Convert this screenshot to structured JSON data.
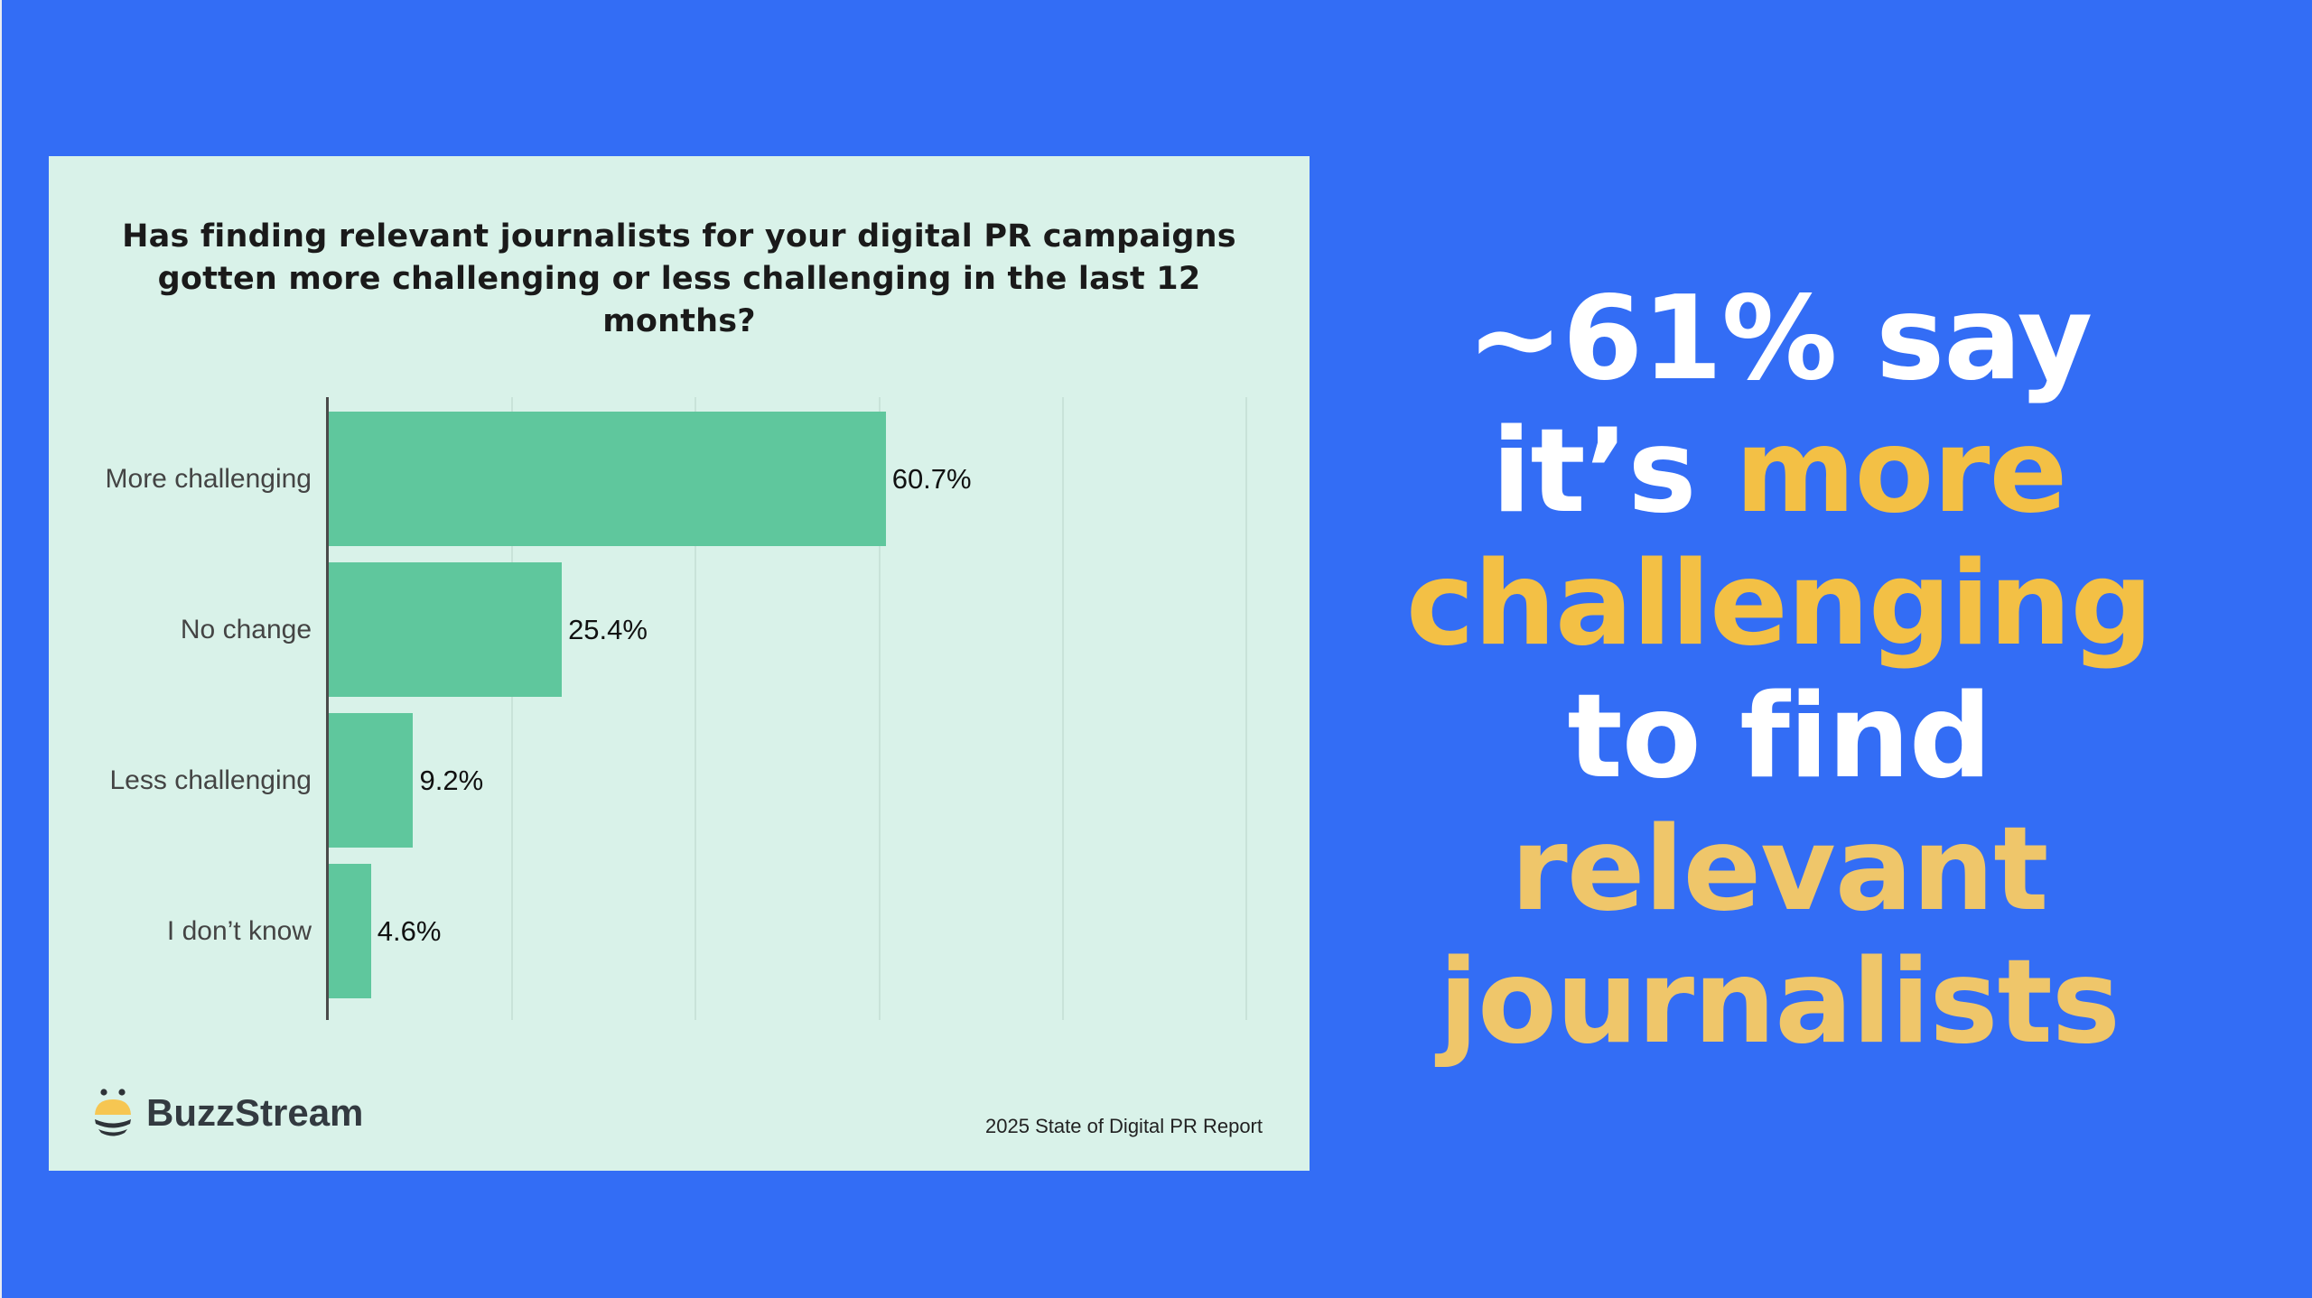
{
  "background_color": "#336DF5",
  "card": {
    "background_color": "#D9F2E9",
    "title_lines": [
      "Has finding relevant journalists for your digital PR campaigns",
      "gotten more challenging or less challenging in the last 12",
      "months?"
    ],
    "brand": "BuzzStream",
    "source": "2025 State of Digital PR Report"
  },
  "chart_data": {
    "type": "bar",
    "orientation": "horizontal",
    "title": "Has finding relevant journalists for your digital PR campaigns gotten more challenging or less challenging in the last 12 months?",
    "categories": [
      "More challenging",
      "No change",
      "Less challenging",
      "I don’t know"
    ],
    "values": [
      60.7,
      25.4,
      9.2,
      4.6
    ],
    "value_labels": [
      "60.7%",
      "25.4%",
      "9.2%",
      "4.6%"
    ],
    "xlabel": "",
    "ylabel": "",
    "xlim": [
      0,
      100
    ],
    "grid": true,
    "gridline_values": [
      20,
      40,
      60,
      80,
      100
    ],
    "tick_labels_shown": false,
    "legend": null,
    "bar_color": "#5FC79D"
  },
  "headline": {
    "lines": [
      [
        {
          "text": "~61% say",
          "style": "white"
        }
      ],
      [
        {
          "text": "it’s ",
          "style": "white"
        },
        {
          "text": "more",
          "style": "yellow"
        }
      ],
      [
        {
          "text": "challenging",
          "style": "yellow"
        }
      ],
      [
        {
          "text": "to find",
          "style": "white"
        }
      ],
      [
        {
          "text": "relevant",
          "style": "yellow2"
        }
      ],
      [
        {
          "text": "journalists",
          "style": "yellow2"
        }
      ]
    ],
    "colors": {
      "white": "#FFFFFF",
      "yellow": "#F3C045",
      "yellow2": "#EFC66A"
    }
  }
}
